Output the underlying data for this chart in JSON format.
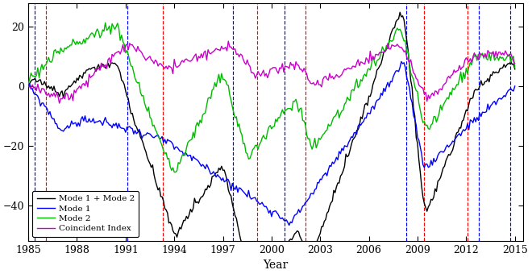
{
  "title": "",
  "xlabel": "Year",
  "ylabel": "",
  "xlim": [
    1985.0,
    2015.5
  ],
  "ylim": [
    -52,
    28
  ],
  "yticks": [
    -40,
    -20,
    0,
    20
  ],
  "xticks": [
    1985,
    1988,
    1991,
    1994,
    1997,
    2000,
    2003,
    2006,
    2009,
    2012,
    2015
  ],
  "valley_lines": [
    1986.1,
    1993.3,
    1999.1,
    2002.1,
    2009.4,
    2012.1
  ],
  "peak_lines": [
    1985.4,
    1991.1,
    1997.6,
    2000.8,
    2008.3,
    2012.8,
    2014.7
  ],
  "line_colors": {
    "mode1_plus_mode2": "#000000",
    "mode1": "#0000ff",
    "mode2": "#00bb00",
    "coincident": "#cc00cc"
  },
  "legend_labels": [
    "Mode 1 + Mode 2",
    "Mode 1",
    "Mode 2",
    "Coincident Index"
  ],
  "line_width": 1.0,
  "figsize": [
    6.6,
    3.4
  ],
  "dpi": 100
}
